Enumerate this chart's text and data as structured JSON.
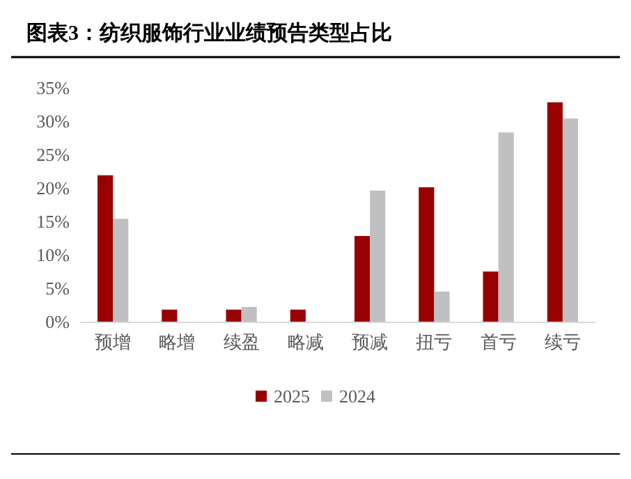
{
  "chart_data": {
    "type": "bar",
    "title": "图表3：纺织服饰行业业绩预告类型占比",
    "categories": [
      "预增",
      "略增",
      "续盈",
      "略减",
      "预减",
      "扭亏",
      "首亏",
      "续亏"
    ],
    "series": [
      {
        "name": "2025",
        "color": "#990000",
        "values": [
          21.9,
          1.8,
          1.8,
          1.8,
          12.8,
          20.1,
          7.5,
          32.8
        ]
      },
      {
        "name": "2024",
        "color": "#c0c0c0",
        "values": [
          15.4,
          0,
          2.2,
          0,
          19.6,
          4.5,
          28.3,
          30.4
        ]
      }
    ],
    "ylim": [
      0,
      35
    ],
    "yticks": [
      {
        "value": 0,
        "label": "0%"
      },
      {
        "value": 5,
        "label": "5%"
      },
      {
        "value": 10,
        "label": "10%"
      },
      {
        "value": 15,
        "label": "15%"
      },
      {
        "value": 20,
        "label": "20%"
      },
      {
        "value": 25,
        "label": "25%"
      },
      {
        "value": 30,
        "label": "30%"
      },
      {
        "value": 35,
        "label": "35%"
      }
    ],
    "grid": false,
    "legend": "bottom"
  }
}
